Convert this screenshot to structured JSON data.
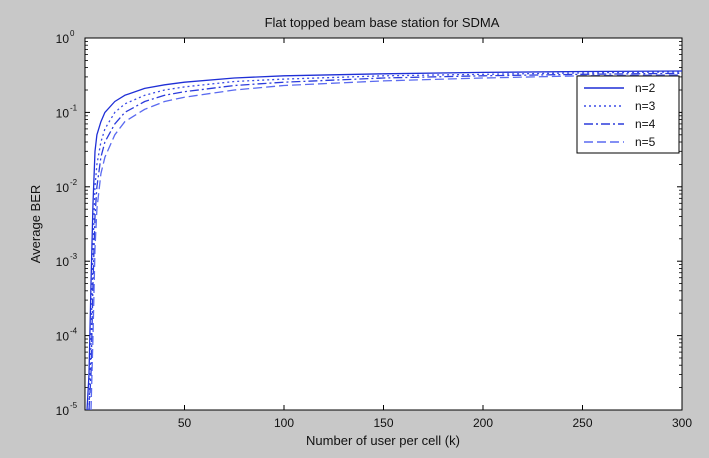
{
  "chart_data": {
    "type": "line",
    "title": "Flat topped beam base station for SDMA",
    "xlabel": "Number of user per cell (k)",
    "ylabel": "Average BER",
    "xlim": [
      0,
      300
    ],
    "ylim": [
      1e-05,
      1
    ],
    "yscale": "log",
    "grid": false,
    "legend_position": "top-right",
    "x_ticks": [
      {
        "value": 50,
        "label": "50"
      },
      {
        "value": 100,
        "label": "100"
      },
      {
        "value": 150,
        "label": "150"
      },
      {
        "value": 200,
        "label": "200"
      },
      {
        "value": 250,
        "label": "250"
      },
      {
        "value": 300,
        "label": "300"
      }
    ],
    "y_ticks": [
      {
        "value": 1,
        "base": "10",
        "exp": "0"
      },
      {
        "value": 0.1,
        "base": "10",
        "exp": "-1"
      },
      {
        "value": 0.01,
        "base": "10",
        "exp": "-2"
      },
      {
        "value": 0.001,
        "base": "10",
        "exp": "-3"
      },
      {
        "value": 0.0001,
        "base": "10",
        "exp": "-4"
      },
      {
        "value": 1e-05,
        "base": "10",
        "exp": "-5"
      }
    ],
    "series": [
      {
        "name": "n=2",
        "line_style": "solid",
        "color": "#1f2fd6",
        "x": [
          1,
          2,
          3,
          4,
          5,
          6,
          8,
          10,
          15,
          20,
          30,
          40,
          50,
          75,
          100,
          150,
          200,
          250,
          300
        ],
        "y": [
          1e-05,
          3e-05,
          0.0005,
          0.006,
          0.03,
          0.05,
          0.075,
          0.1,
          0.14,
          0.17,
          0.21,
          0.235,
          0.255,
          0.29,
          0.31,
          0.33,
          0.345,
          0.355,
          0.36
        ]
      },
      {
        "name": "n=3",
        "line_style": "dotted",
        "color": "#3a4be6",
        "x": [
          2,
          3,
          4,
          5,
          6,
          8,
          10,
          15,
          20,
          30,
          40,
          50,
          75,
          100,
          150,
          200,
          250,
          300
        ],
        "y": [
          1e-05,
          8e-05,
          0.0015,
          0.01,
          0.02,
          0.04,
          0.06,
          0.1,
          0.13,
          0.17,
          0.2,
          0.22,
          0.26,
          0.28,
          0.31,
          0.325,
          0.34,
          0.35
        ]
      },
      {
        "name": "n=4",
        "line_style": "dashdot",
        "color": "#2c3cdc",
        "x": [
          2,
          3,
          4,
          5,
          6,
          8,
          10,
          15,
          20,
          30,
          40,
          50,
          75,
          100,
          150,
          200,
          250,
          300
        ],
        "y": [
          1e-05,
          3e-05,
          0.0005,
          0.004,
          0.01,
          0.025,
          0.04,
          0.07,
          0.1,
          0.14,
          0.17,
          0.19,
          0.23,
          0.255,
          0.29,
          0.31,
          0.325,
          0.335
        ]
      },
      {
        "name": "n=5",
        "line_style": "dashed",
        "color": "#5a6af0",
        "x": [
          3,
          4,
          5,
          6,
          8,
          10,
          15,
          20,
          30,
          40,
          50,
          75,
          100,
          150,
          200,
          250,
          300
        ],
        "y": [
          1e-05,
          0.0001,
          0.0015,
          0.005,
          0.015,
          0.025,
          0.05,
          0.075,
          0.11,
          0.14,
          0.16,
          0.2,
          0.23,
          0.265,
          0.29,
          0.31,
          0.32
        ]
      }
    ]
  }
}
